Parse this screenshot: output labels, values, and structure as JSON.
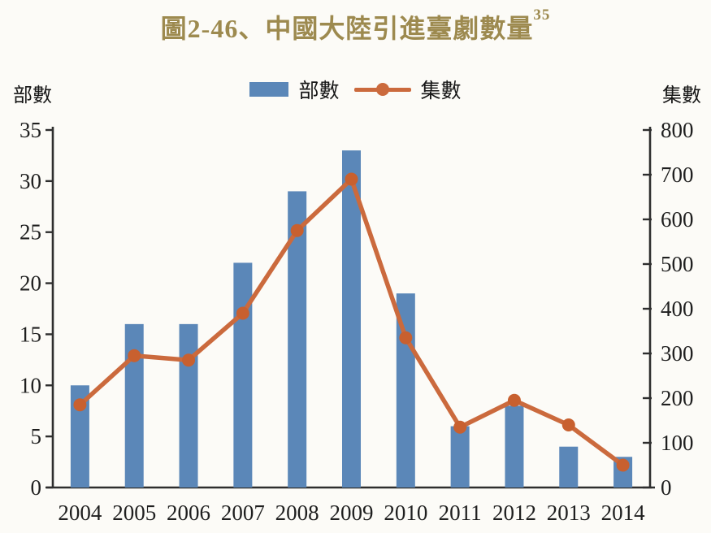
{
  "page": {
    "background": "#fcfbf7"
  },
  "header": {
    "title": "圖2-46、中國大陸引進臺劇數量",
    "footnote_ref": "35",
    "title_color": "#9d8a4f"
  },
  "axis_unit_labels": {
    "left": "部數",
    "right": "集數"
  },
  "legend": {
    "items": [
      {
        "label": "部數",
        "type": "bar",
        "color": "#5b87b8"
      },
      {
        "label": "集數",
        "type": "line",
        "color": "#cb6a3d"
      }
    ]
  },
  "chart_data": {
    "type": "bar",
    "subtype": "combo-bar-line-dual-axis",
    "title": "圖2-46、中國大陸引進臺劇數量",
    "categories": [
      "2004",
      "2005",
      "2006",
      "2007",
      "2008",
      "2009",
      "2010",
      "2011",
      "2012",
      "2013",
      "2014"
    ],
    "series": [
      {
        "name": "部數",
        "type": "bar",
        "axis": "left",
        "color": "#5b87b8",
        "values": [
          10,
          16,
          16,
          22,
          29,
          33,
          19,
          6,
          8,
          4,
          3
        ]
      },
      {
        "name": "集數",
        "type": "line",
        "axis": "right",
        "color": "#cb6a3d",
        "marker_color": "#c8602f",
        "values": [
          185,
          295,
          285,
          390,
          575,
          690,
          335,
          135,
          195,
          140,
          50
        ]
      }
    ],
    "left_axis": {
      "label": "部數",
      "min": 0,
      "max": 35,
      "step": 5
    },
    "right_axis": {
      "label": "集數",
      "min": 0,
      "max": 800,
      "step": 100
    },
    "grid": false,
    "legend_position": "top-center",
    "axis_color": "#2e2e2e",
    "tick_label_color": "#1f1f1f"
  }
}
